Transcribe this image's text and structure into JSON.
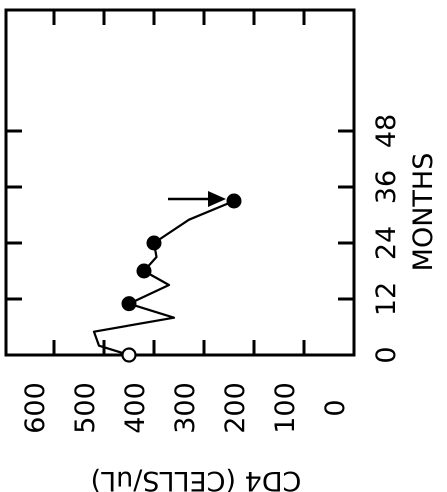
{
  "chart_data": {
    "type": "line",
    "orientation": "rotated-90-clockwise",
    "xlabel": "MONTHS",
    "ylabel": "CD4 (CELLS/uL)",
    "x_ticks": [
      "0",
      "12",
      "24",
      "36",
      "48"
    ],
    "y_ticks": [
      "0",
      "100",
      "200",
      "300",
      "400",
      "500",
      "600"
    ],
    "xlim": [
      0,
      52
    ],
    "ylim": [
      0,
      650
    ],
    "series": [
      {
        "x": [
          0,
          2,
          5,
          8,
          11,
          15,
          18,
          21,
          24,
          29,
          33
        ],
        "y": [
          450,
          510,
          520,
          360,
          450,
          370,
          420,
          395,
          400,
          330,
          240
        ]
      }
    ],
    "markers": [
      {
        "x": 0,
        "y": 450,
        "style": "open-circle"
      },
      {
        "x": 11,
        "y": 450,
        "style": "filled-circle"
      },
      {
        "x": 18,
        "y": 420,
        "style": "filled-circle"
      },
      {
        "x": 24,
        "y": 400,
        "style": "filled-circle"
      },
      {
        "x": 33,
        "y": 240,
        "style": "filled-circle"
      }
    ],
    "annotations": [
      {
        "type": "arrow",
        "target_x": 33,
        "target_y": 240
      }
    ],
    "grid": false,
    "legend": "none"
  }
}
